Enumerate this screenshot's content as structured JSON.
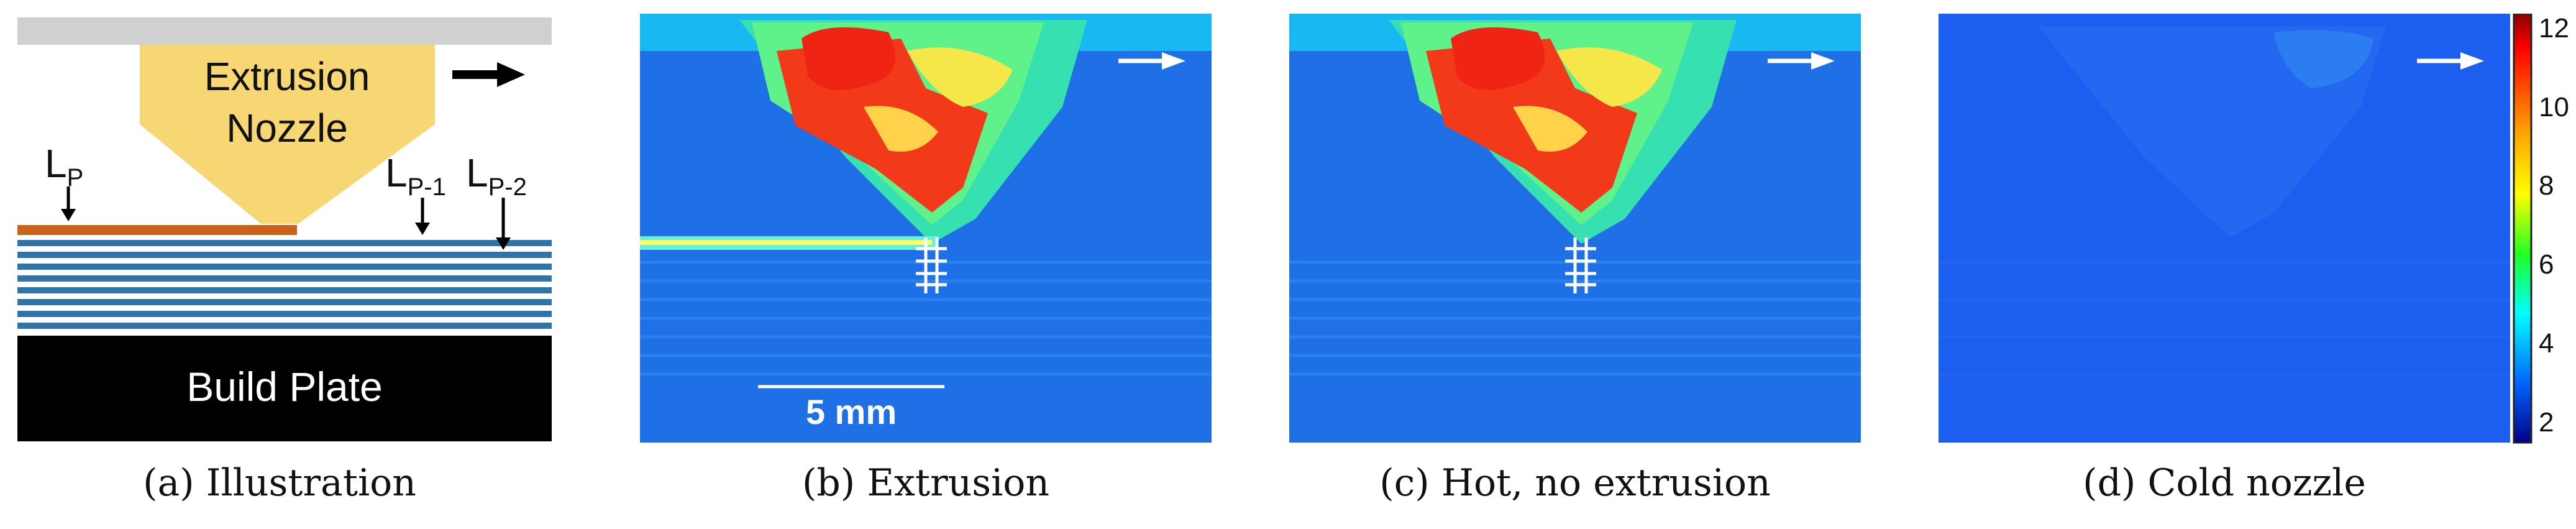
{
  "panels": {
    "a": {
      "caption": "(a) Illustration",
      "nozzle_label_1": "Extrusion",
      "nozzle_label_2": "Nozzle",
      "layer_labels": {
        "lp_base": "L",
        "lp_sub": "P",
        "lp1_base": "L",
        "lp1_sub": "P-1",
        "lp2_base": "L",
        "lp2_sub": "P-2"
      },
      "build_plate_label": "Build Plate",
      "colors": {
        "nozzle": "#f7d774",
        "gantry": "#d0d0d0",
        "new_layer": "#c9621a",
        "layers": "#2f74a8",
        "plate": "#000000"
      }
    },
    "b": {
      "caption": "(b) Extrusion",
      "scale_label": "5 mm"
    },
    "c": {
      "caption": "(c) Hot, no extrusion"
    },
    "d": {
      "caption": "(d) Cold nozzle"
    },
    "colorbar": {
      "ticks": [
        "12",
        "10",
        "8",
        "6",
        "4",
        "2"
      ]
    }
  }
}
